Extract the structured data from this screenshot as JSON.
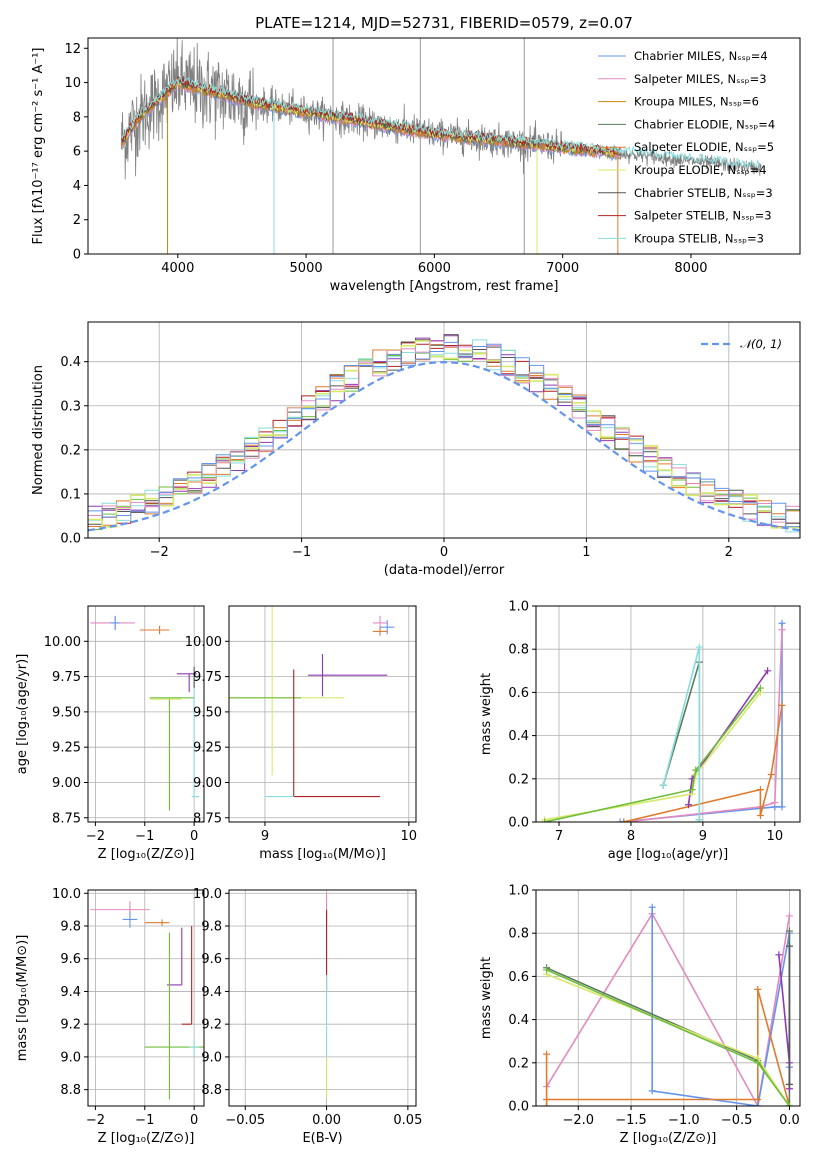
{
  "figure_title": "PLATE=1214, MJD=52731, FIBERID=0579, z=0.07",
  "chart_data": [
    {
      "id": "spectrum",
      "type": "line",
      "title": "PLATE=1214, MJD=52731, FIBERID=0579, z=0.07",
      "xlabel": "wavelength [Angstrom, rest frame]",
      "ylabel": "Flux [fλ10⁻¹⁷ erg cm⁻² s⁻¹ A⁻¹]",
      "xlim": [
        3300,
        8850
      ],
      "ylim": [
        0,
        12.6
      ],
      "xticks": [
        4000,
        5000,
        6000,
        7000,
        8000
      ],
      "yticks": [
        0,
        2,
        4,
        6,
        8,
        10,
        12
      ],
      "legend_position": "top-right",
      "data_color": "#808080",
      "data_range": [
        3560,
        8550
      ],
      "models": [
        {
          "label": "Chabrier MILES, Nₛₛₚ=4",
          "color": "#6495ed"
        },
        {
          "label": "Salpeter MILES, Nₛₛₚ=3",
          "color": "#e48ac0"
        },
        {
          "label": "Kroupa MILES, Nₛₛₚ=6",
          "color": "#c8860d"
        },
        {
          "label": "Chabrier ELODIE, Nₛₛₚ=4",
          "color": "#5b7b5b"
        },
        {
          "label": "Salpeter ELODIE, Nₛₛₚ=5",
          "color": "#e07a2f"
        },
        {
          "label": "Kroupa ELODIE, Nₛₛₚ=4",
          "color": "#d8e86a"
        },
        {
          "label": "Chabrier STELIB, Nₛₛₚ=3",
          "color": "#555555"
        },
        {
          "label": "Salpeter STELIB, Nₛₛₚ=3",
          "color": "#b22222"
        },
        {
          "label": "Kroupa STELIB, Nₛₛₚ=3",
          "color": "#88dddd"
        }
      ]
    },
    {
      "id": "residuals",
      "type": "line",
      "xlabel": "(data-model)/error",
      "ylabel": "Normed distribution",
      "xlim": [
        -2.5,
        2.5
      ],
      "ylim": [
        0,
        0.49
      ],
      "xticks": [
        -2,
        -1,
        0,
        1,
        2
      ],
      "yticks": [
        0.0,
        0.1,
        0.2,
        0.3,
        0.4
      ],
      "grid": true,
      "legend_position": "top-right",
      "reference": {
        "label": "𝒩(0, 1)",
        "color": "#6495ed",
        "mean": 0,
        "sigma": 1
      },
      "bin_width": 0.1,
      "hist_colors": [
        "#8e3ab0",
        "#e07a2f",
        "#6fbe3a",
        "#b22222",
        "#88dddd",
        "#555555",
        "#d8e86a",
        "#e48ac0",
        "#6495ed"
      ]
    },
    {
      "id": "age-vs-Z",
      "type": "scatter",
      "xlabel": "Z [log₁₀(Z/Z⊙)]",
      "ylabel": "age  [log₁₀(age/yr)]",
      "xlim": [
        -2.15,
        0.2
      ],
      "ylim": [
        8.72,
        10.25
      ],
      "xticks": [
        -2,
        -1,
        0
      ],
      "yticks": [
        8.75,
        9.0,
        9.25,
        9.5,
        9.75,
        10.0
      ],
      "grid": true,
      "errorbars": [
        {
          "x": -1.6,
          "y": 10.13,
          "xerr": [
            0.5,
            0.4
          ],
          "yerr": [
            0.05,
            0.05
          ],
          "color": "#e48ac0"
        },
        {
          "x": -1.6,
          "y": 10.13,
          "xerr": [
            0.1,
            0.1
          ],
          "yerr": [
            0.05,
            0.05
          ],
          "color": "#6495ed"
        },
        {
          "x": -0.7,
          "y": 10.08,
          "xerr": [
            0.4,
            0.2
          ],
          "yerr": [
            0.03,
            0.03
          ],
          "color": "#e07a2f"
        },
        {
          "x": -0.1,
          "y": 9.77,
          "xerr": [
            0.25,
            0.15
          ],
          "yerr": [
            0.13,
            0.0
          ],
          "color": "#8e3ab0"
        },
        {
          "x": -0.5,
          "y": 9.6,
          "xerr": [
            0.4,
            0.5
          ],
          "yerr": [
            0.8,
            0.0
          ],
          "color": "#6fbe3a"
        },
        {
          "x": -0.55,
          "y": 9.59,
          "xerr": [
            0.35,
            0.3
          ],
          "yerr": [
            0.0,
            0.0
          ],
          "color": "#d8e86a"
        },
        {
          "x": 0.0,
          "y": 8.9,
          "xerr": [
            0.05,
            0.1
          ],
          "yerr": [
            0.0,
            0.9
          ],
          "color": "#88dddd"
        },
        {
          "x": 0.0,
          "y": 9.77,
          "xerr": [
            0.02,
            0.02
          ],
          "yerr": [
            0.1,
            0.05
          ],
          "color": "#555555"
        }
      ]
    },
    {
      "id": "age-vs-mass",
      "type": "scatter",
      "xlabel": "mass [log₁₀(M/M⊙)]",
      "ylabel": "",
      "xlim": [
        8.75,
        10.05
      ],
      "ylim": [
        8.72,
        10.25
      ],
      "xticks": [
        9,
        10
      ],
      "yticks": [
        8.75,
        9.0,
        9.25,
        9.5,
        9.75,
        10.0
      ],
      "grid": true,
      "errorbars": [
        {
          "x": 9.8,
          "y": 10.13,
          "xerr": [
            0.05,
            0.05
          ],
          "yerr": [
            0.05,
            0.05
          ],
          "color": "#e48ac0"
        },
        {
          "x": 9.85,
          "y": 10.1,
          "xerr": [
            0.05,
            0.05
          ],
          "yerr": [
            0.05,
            0.05
          ],
          "color": "#6495ed"
        },
        {
          "x": 9.8,
          "y": 10.07,
          "xerr": [
            0.05,
            0.05
          ],
          "yerr": [
            0.03,
            0.03
          ],
          "color": "#e07a2f"
        },
        {
          "x": 9.4,
          "y": 9.76,
          "xerr": [
            0.1,
            0.45
          ],
          "yerr": [
            0.15,
            0.15
          ],
          "color": "#8e3ab0"
        },
        {
          "x": 9.05,
          "y": 9.6,
          "xerr": [
            0.3,
            0.5
          ],
          "yerr": [
            0.55,
            0.8
          ],
          "color": "#d8e86a"
        },
        {
          "x": 9.05,
          "y": 9.6,
          "xerr": [
            0.3,
            0.2
          ],
          "yerr": [
            0.0,
            0.0
          ],
          "color": "#6fbe3a"
        },
        {
          "x": 9.2,
          "y": 8.9,
          "xerr": [
            0.0,
            0.6
          ],
          "yerr": [
            0.0,
            0.9
          ],
          "color": "#b22222"
        },
        {
          "x": 9.1,
          "y": 8.9,
          "xerr": [
            0.1,
            0.1
          ],
          "yerr": [
            0.0,
            0.0
          ],
          "color": "#88dddd"
        }
      ]
    },
    {
      "id": "weight-vs-age",
      "type": "line",
      "xlabel": "age  [log₁₀(age/yr)]",
      "ylabel": "mass weight",
      "xlim": [
        6.68,
        10.35
      ],
      "ylim": [
        0,
        1
      ],
      "xticks": [
        7,
        8,
        9,
        10
      ],
      "yticks": [
        0.0,
        0.2,
        0.4,
        0.6,
        0.8,
        1.0
      ],
      "grid": true,
      "series": [
        {
          "color": "#6495ed",
          "x": [
            7.85,
            10.0,
            10.1,
            10.1
          ],
          "y": [
            0.0,
            0.07,
            0.07,
            0.92
          ]
        },
        {
          "color": "#e48ac0",
          "x": [
            7.9,
            9.8,
            10.0,
            10.1
          ],
          "y": [
            0.0,
            0.07,
            0.09,
            0.89
          ]
        },
        {
          "color": "#e07a2f",
          "x": [
            7.9,
            9.8,
            9.8,
            9.95,
            10.1
          ],
          "y": [
            0.0,
            0.15,
            0.03,
            0.22,
            0.54
          ]
        },
        {
          "color": "#8e3ab0",
          "x": [
            8.8,
            8.85,
            9.9
          ],
          "y": [
            0.08,
            0.2,
            0.7
          ]
        },
        {
          "color": "#d8e86a",
          "x": [
            6.8,
            8.85,
            8.9,
            9.8
          ],
          "y": [
            0.01,
            0.13,
            0.22,
            0.6
          ]
        },
        {
          "color": "#6fbe3a",
          "x": [
            6.8,
            8.85,
            8.9,
            9.8
          ],
          "y": [
            0.0,
            0.15,
            0.24,
            0.62
          ]
        },
        {
          "color": "#5b7b5b",
          "x": [
            8.45,
            8.95,
            8.95
          ],
          "y": [
            0.17,
            0.74,
            0.01
          ]
        },
        {
          "color": "#88dddd",
          "x": [
            8.45,
            8.95,
            8.95
          ],
          "y": [
            0.17,
            0.81,
            0.01
          ]
        }
      ]
    },
    {
      "id": "mass-vs-Z",
      "type": "scatter",
      "xlabel": "Z [log₁₀(Z/Z⊙)]",
      "ylabel": "mass [log₁₀(M/M⊙)]",
      "xlim": [
        -2.15,
        0.2
      ],
      "ylim": [
        8.7,
        10.02
      ],
      "xticks": [
        -2,
        -1,
        0
      ],
      "yticks": [
        8.8,
        9.0,
        9.2,
        9.4,
        9.6,
        9.8,
        10.0
      ],
      "grid": true,
      "errorbars": [
        {
          "x": -1.3,
          "y": 9.9,
          "xerr": [
            0.8,
            0.4
          ],
          "yerr": [
            0.05,
            0.05
          ],
          "color": "#e48ac0"
        },
        {
          "x": -1.3,
          "y": 9.84,
          "xerr": [
            0.15,
            0.15
          ],
          "yerr": [
            0.05,
            0.05
          ],
          "color": "#6495ed"
        },
        {
          "x": -0.65,
          "y": 9.82,
          "xerr": [
            0.35,
            0.15
          ],
          "yerr": [
            0.02,
            0.02
          ],
          "color": "#e07a2f"
        },
        {
          "x": -0.25,
          "y": 9.44,
          "xerr": [
            0.3,
            0.0
          ],
          "yerr": [
            0.0,
            0.35
          ],
          "color": "#8e3ab0"
        },
        {
          "x": -0.05,
          "y": 9.2,
          "xerr": [
            0.2,
            0.0
          ],
          "yerr": [
            0.0,
            0.6
          ],
          "color": "#b22222"
        },
        {
          "x": -0.5,
          "y": 9.06,
          "xerr": [
            0.5,
            0.7
          ],
          "yerr": [
            0.32,
            0.7
          ],
          "color": "#6fbe3a"
        },
        {
          "x": -0.55,
          "y": 9.06,
          "xerr": [
            0.0,
            0.0
          ],
          "yerr": [
            0.0,
            0.0
          ],
          "color": "#d8e86a"
        },
        {
          "x": 0.0,
          "y": 9.06,
          "xerr": [
            0.1,
            0.1
          ],
          "yerr": [
            0.05,
            0.05
          ],
          "color": "#88dddd"
        }
      ]
    },
    {
      "id": "mass-vs-EBV",
      "type": "scatter",
      "xlabel": "E(B-V)",
      "ylabel": "",
      "xlim": [
        -0.06,
        0.055
      ],
      "ylim": [
        8.7,
        10.02
      ],
      "xticks": [
        -0.05,
        0.0,
        0.05
      ],
      "yticks": [
        8.8,
        9.0,
        9.2,
        9.4,
        9.6,
        9.8,
        10.0
      ],
      "grid": true,
      "errorbars": [
        {
          "x": 0.0,
          "y": 9.9,
          "xerr": [
            0,
            0
          ],
          "yerr": [
            0.1,
            0.1
          ],
          "color": "#e48ac0"
        },
        {
          "x": 0.0,
          "y": 9.6,
          "xerr": [
            0,
            0
          ],
          "yerr": [
            0.2,
            0.3
          ],
          "color": "#b22222"
        },
        {
          "x": 0.0,
          "y": 9.2,
          "xerr": [
            0,
            0
          ],
          "yerr": [
            0.45,
            0.3
          ],
          "color": "#88dddd"
        },
        {
          "x": 0.0,
          "y": 8.9,
          "xerr": [
            0,
            0
          ],
          "yerr": [
            0.15,
            0.1
          ],
          "color": "#d8e86a"
        }
      ]
    },
    {
      "id": "weight-vs-Z",
      "type": "line",
      "xlabel": "Z [log₁₀(Z/Z⊙)]",
      "ylabel": "mass weight",
      "xlim": [
        -2.4,
        0.1
      ],
      "ylim": [
        0,
        1
      ],
      "xticks": [
        -2.0,
        -1.5,
        -1.0,
        -0.5,
        0.0
      ],
      "yticks": [
        0.0,
        0.2,
        0.4,
        0.6,
        0.8,
        1.0
      ],
      "grid": true,
      "series": [
        {
          "color": "#e48ac0",
          "x": [
            -2.3,
            -1.3,
            -0.3,
            0.0
          ],
          "y": [
            0.09,
            0.89,
            0.0,
            0.88
          ]
        },
        {
          "color": "#6495ed",
          "x": [
            -1.3,
            -1.3,
            -0.3,
            0.0,
            0.0
          ],
          "y": [
            0.92,
            0.07,
            0.0,
            0.8,
            0.18
          ]
        },
        {
          "color": "#e07a2f",
          "x": [
            -2.3,
            -2.3,
            -2.3,
            -0.3,
            -0.3,
            0.0
          ],
          "y": [
            0.24,
            0.0,
            0.03,
            0.03,
            0.54,
            0.0
          ]
        },
        {
          "color": "#5b7b5b",
          "x": [
            -2.3,
            -0.3,
            0.0,
            0.0
          ],
          "y": [
            0.64,
            0.21,
            0.0,
            0.81
          ]
        },
        {
          "color": "#d8e86a",
          "x": [
            -2.3,
            -0.3,
            0.0
          ],
          "y": [
            0.61,
            0.22,
            0.0
          ]
        },
        {
          "color": "#6fbe3a",
          "x": [
            -2.3,
            -0.3,
            0.0
          ],
          "y": [
            0.63,
            0.2,
            0.0
          ]
        },
        {
          "color": "#8e3ab0",
          "x": [
            -0.1,
            0.0,
            0.0
          ],
          "y": [
            0.7,
            0.2,
            0.08
          ]
        },
        {
          "color": "#555555",
          "x": [
            0.0,
            0.0
          ],
          "y": [
            0.74,
            0.1
          ]
        }
      ]
    }
  ]
}
